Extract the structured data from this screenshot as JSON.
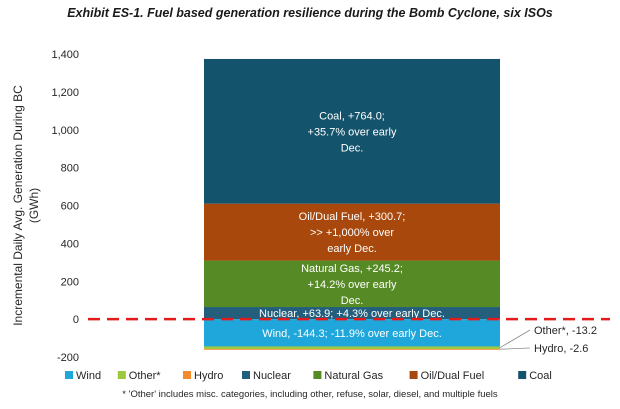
{
  "title": "Exhibit ES-1. Fuel based generation resilience during the Bomb Cyclone, six ISOs",
  "footnote": "* 'Other' includes misc. categories, including other, refuse, solar, diesel, and multiple fuels",
  "chart_data": {
    "type": "bar",
    "stacked": true,
    "ylabel": "Incremental Daily Avg. Generation During BC (GWh)",
    "ylim": [
      -200,
      1400
    ],
    "yticks": [
      -200,
      0,
      200,
      400,
      600,
      800,
      1000,
      1200,
      1400
    ],
    "ytick_labels": [
      "-200",
      "0",
      "200",
      "400",
      "600",
      "800",
      "1,000",
      "1,200",
      "1,400"
    ],
    "zero_line": {
      "color": "#e31b1b",
      "style": "dashed"
    },
    "legend_position": "bottom",
    "series": [
      {
        "name": "Wind",
        "value": -144.3,
        "color": "#1fa7dc",
        "label": [
          "Wind, -144.3; -11.9% over early Dec."
        ]
      },
      {
        "name": "Other*",
        "value": -13.2,
        "color": "#9bc83c",
        "callout": "Other*, -13.2"
      },
      {
        "name": "Hydro",
        "value": -2.6,
        "color": "#f48a2b",
        "callout": "Hydro, -2.6"
      },
      {
        "name": "Nuclear",
        "value": 63.9,
        "color": "#235f7c",
        "label": [
          "Nuclear, +63.9; +4.3% over early Dec."
        ]
      },
      {
        "name": "Natural Gas",
        "value": 245.2,
        "color": "#568a25",
        "label": [
          "Natural Gas, +245.2;",
          "+14.2% over early",
          "Dec."
        ]
      },
      {
        "name": "Oil/Dual Fuel",
        "value": 300.7,
        "color": "#a8480c",
        "label": [
          "Oil/Dual Fuel, +300.7;",
          ">> +1,000% over",
          "early Dec."
        ]
      },
      {
        "name": "Coal",
        "value": 764.0,
        "color": "#14536c",
        "label": [
          "Coal, +764.0;",
          "+35.7% over early",
          "Dec."
        ]
      }
    ]
  }
}
